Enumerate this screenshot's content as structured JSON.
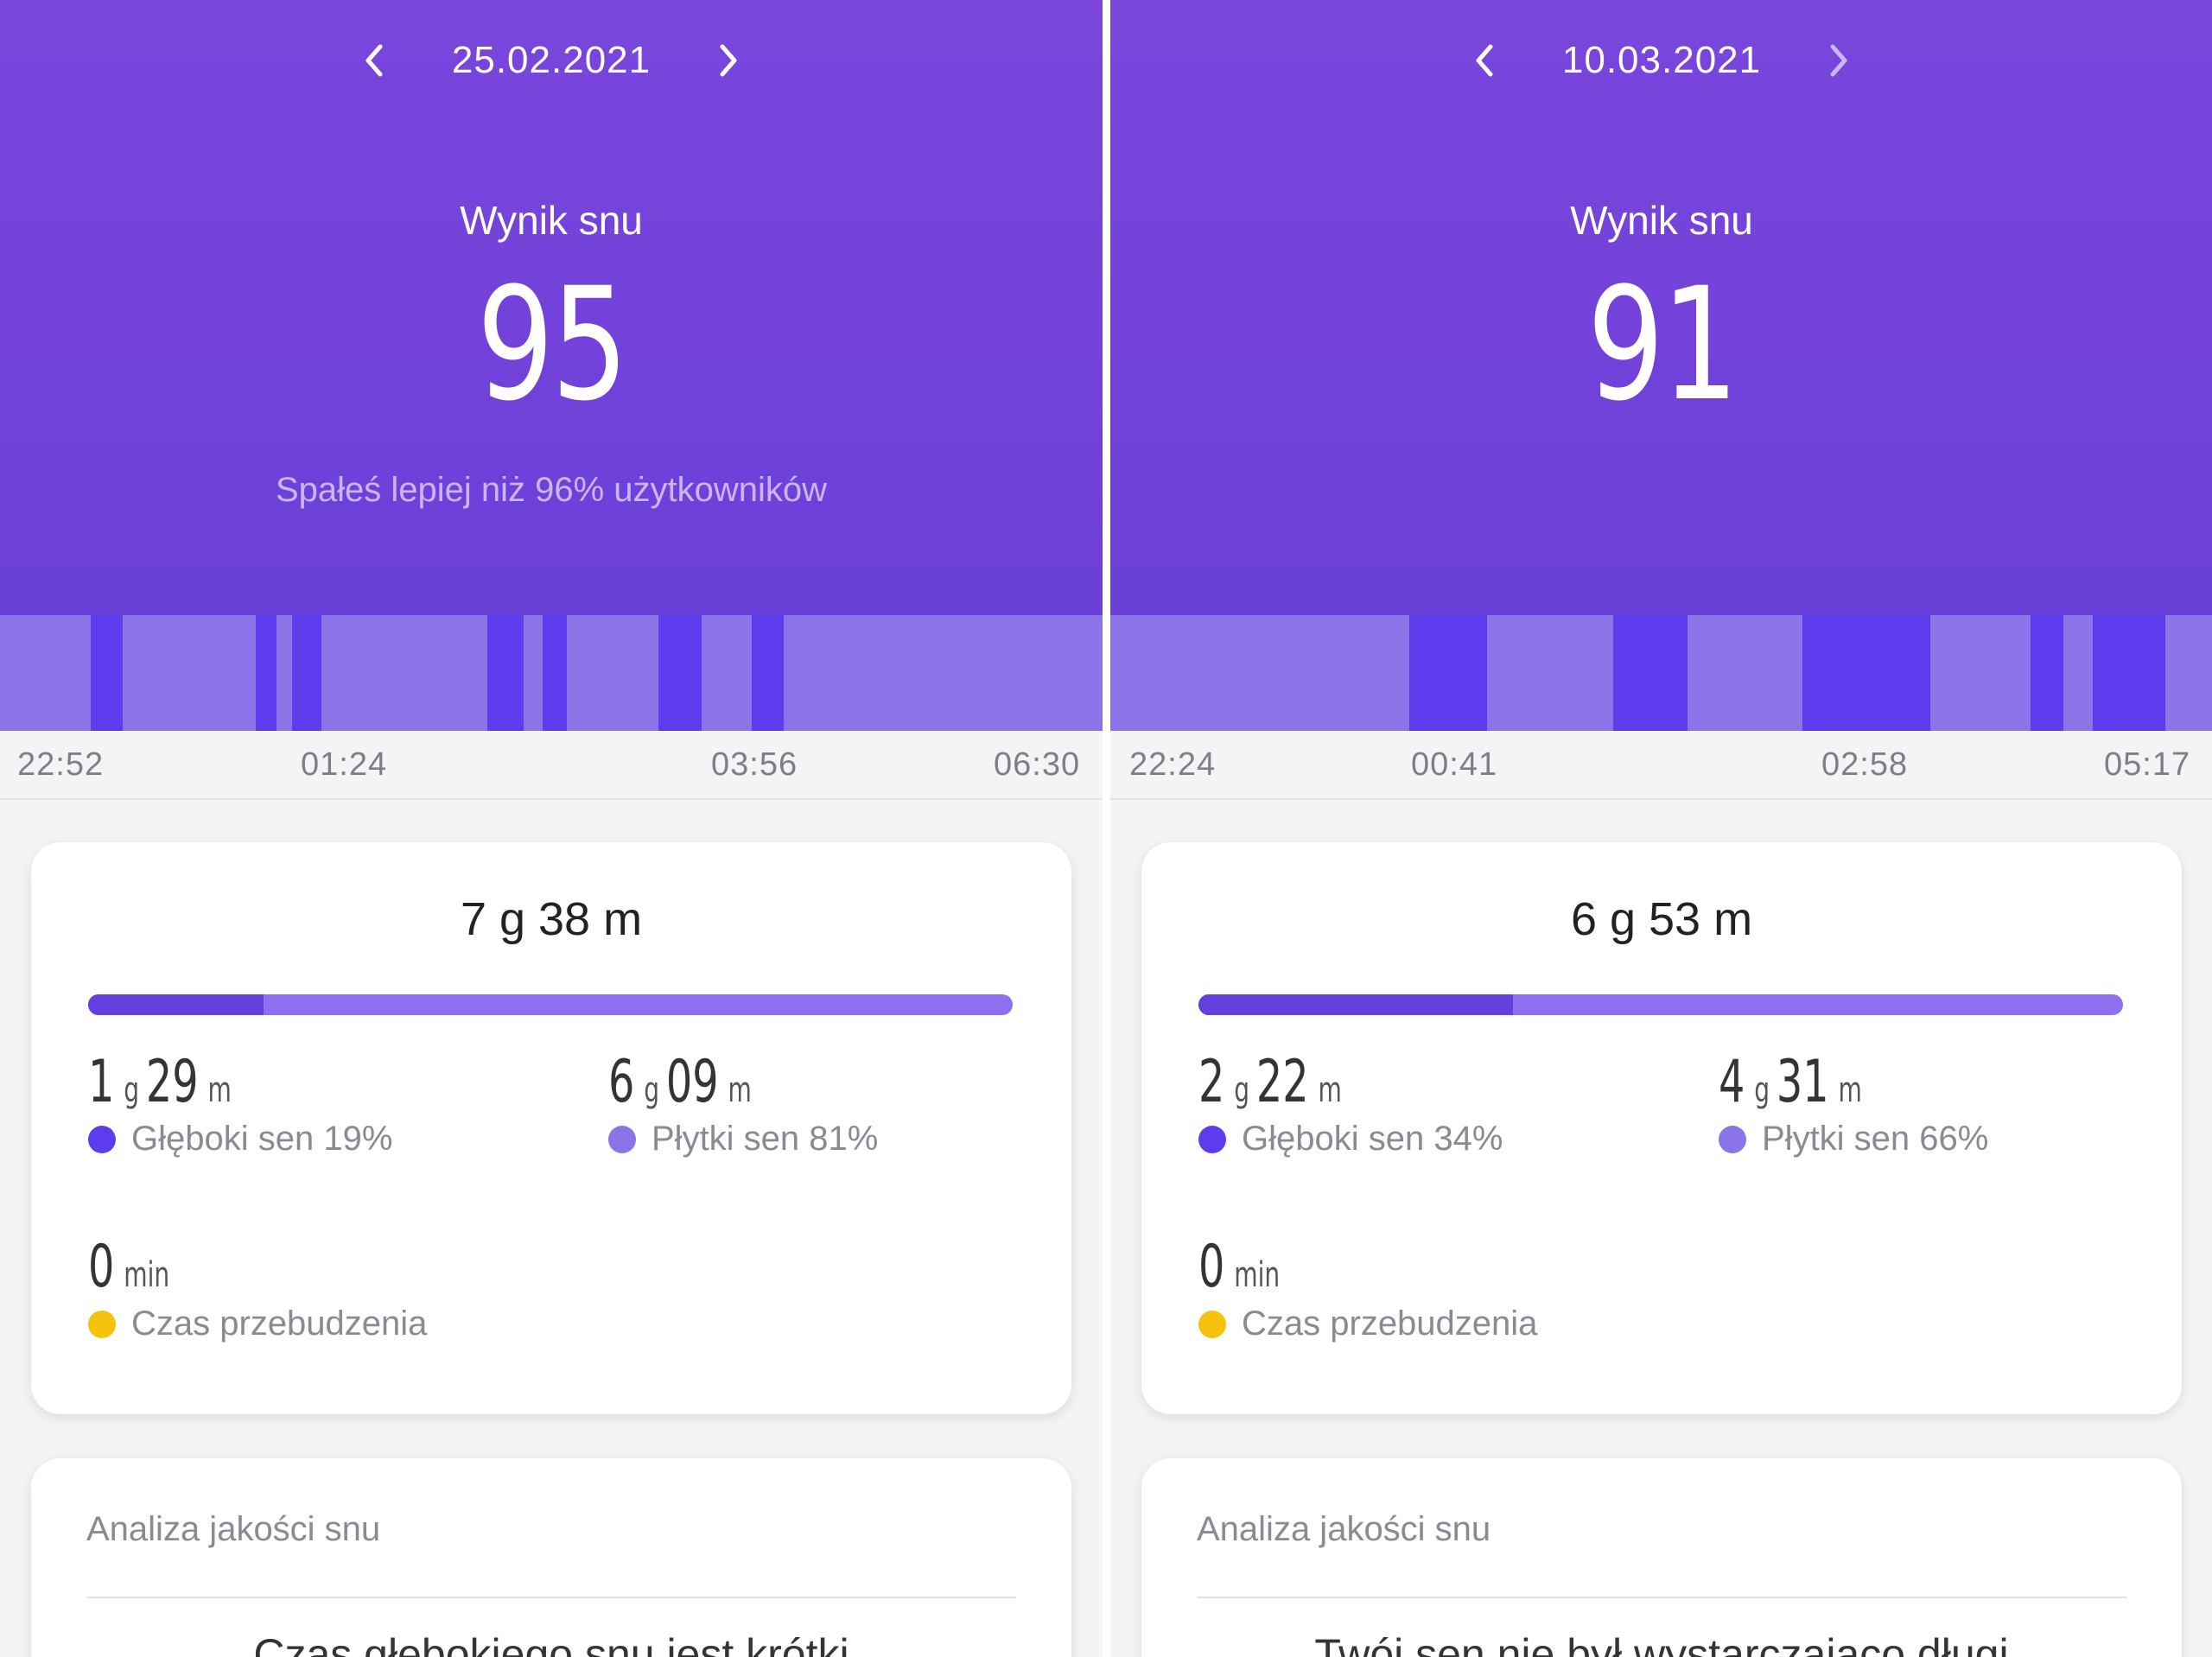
{
  "colors": {
    "header_purple": "#7546db",
    "deep_sleep": "#5d3cee",
    "light_sleep": "#8b74e8",
    "awake": "#f6c20d",
    "card_background": "#ffffff"
  },
  "icons": {
    "previous": "chevron-left-icon",
    "next": "chevron-right-icon"
  },
  "panels": [
    {
      "date": "25.02.2021",
      "score_title": "Wynik snu",
      "score": "95",
      "comparison": "Spałeś lepiej niż 96% użytkowników",
      "timeline_ticks": [
        "22:52",
        "01:24",
        "03:56",
        "06:30"
      ],
      "total_duration": "7 g 38 m",
      "deep_fraction": 0.19,
      "deep": {
        "hours": "1",
        "h_unit": "g",
        "minutes": "29",
        "m_unit": "m",
        "label": "Głęboki sen 19%"
      },
      "light": {
        "hours": "6",
        "h_unit": "g",
        "minutes": "09",
        "m_unit": "m",
        "label": "Płytki sen 81%"
      },
      "awake": {
        "value": "0",
        "unit": "min",
        "label": "Czas przebudzenia"
      },
      "analysis_title": "Analiza jakości snu",
      "analysis_text": "Czas głębokiego snu jest krótki"
    },
    {
      "date": "10.03.2021",
      "score_title": "Wynik snu",
      "score": "91",
      "comparison": "",
      "timeline_ticks": [
        "22:24",
        "00:41",
        "02:58",
        "05:17"
      ],
      "total_duration": "6 g 53 m",
      "deep_fraction": 0.34,
      "deep": {
        "hours": "2",
        "h_unit": "g",
        "minutes": "22",
        "m_unit": "m",
        "label": "Głęboki sen 34%"
      },
      "light": {
        "hours": "4",
        "h_unit": "g",
        "minutes": "31",
        "m_unit": "m",
        "label": "Płytki sen 66%"
      },
      "awake": {
        "value": "0",
        "unit": "min",
        "label": "Czas przebudzenia"
      },
      "analysis_title": "Analiza jakości snu",
      "analysis_text": "Twój sen nie był wystarczająco długi"
    }
  ]
}
